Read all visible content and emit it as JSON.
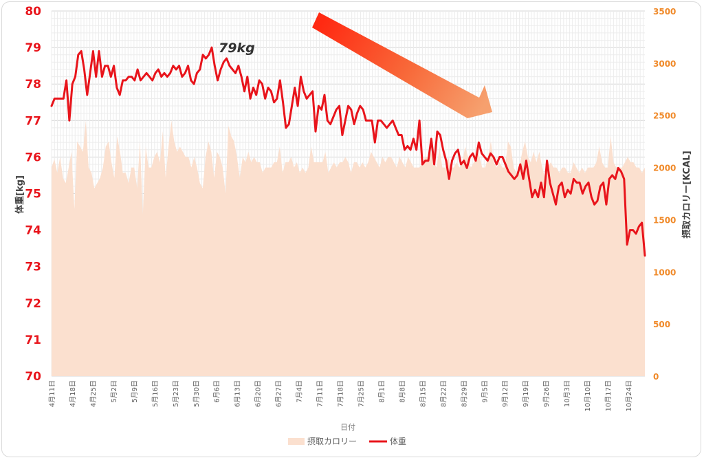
{
  "chart_data": {
    "type": "line",
    "title": "",
    "xlabel": "日付",
    "ylabel_left": "体重[kg]",
    "ylabel_right": "摂取カロリー[KCAL]",
    "y_left_range": [
      70,
      80
    ],
    "y_left_ticks": [
      "70",
      "71",
      "72",
      "73",
      "74",
      "75",
      "76",
      "77",
      "78",
      "79",
      "80"
    ],
    "y_right_range": [
      0,
      3500
    ],
    "y_right_ticks": [
      "0",
      "500",
      "1000",
      "1500",
      "2000",
      "2500",
      "3000",
      "3500"
    ],
    "x_tick_labels": [
      "4月11日",
      "4月18日",
      "4月25日",
      "5月2日",
      "5月9日",
      "5月16日",
      "5月23日",
      "5月30日",
      "6月6日",
      "6月13日",
      "6月20日",
      "6月27日",
      "7月4日",
      "7月11日",
      "7月18日",
      "7月25日",
      "8月1日",
      "8月8日",
      "8月15日",
      "8月22日",
      "8月29日",
      "9月5日",
      "9月12日",
      "9月19日",
      "9月26日",
      "10月3日",
      "10月10日",
      "10月17日",
      "10月24日"
    ],
    "grid": true,
    "legend_position": "bottom",
    "annotation": "79kg",
    "colors": {
      "weight": "#e8141b",
      "calorie": "#fbe0cf",
      "arrow": "#f04a2a",
      "left_axis": "#e8141b",
      "right_axis": "#f08a2a"
    },
    "series": [
      {
        "name": "摂取カロリー",
        "type": "area",
        "axis": "right",
        "values": [
          2000,
          2080,
          1950,
          2100,
          1900,
          1850,
          2000,
          2150,
          1600,
          2250,
          2200,
          2150,
          2450,
          2000,
          1950,
          1800,
          1850,
          1900,
          2000,
          2200,
          2250,
          2050,
          1900,
          2300,
          2150,
          1950,
          1950,
          1850,
          2000,
          2000,
          1800,
          2250,
          1550,
          2200,
          2000,
          2000,
          2100,
          2150,
          2050,
          2350,
          1900,
          2200,
          2450,
          2250,
          2150,
          2200,
          2150,
          2100,
          2100,
          2000,
          2100,
          2000,
          1850,
          1800,
          2100,
          2250,
          2150,
          1900,
          2150,
          2100,
          2000,
          1750,
          2400,
          2300,
          2250,
          2100,
          1900,
          2100,
          2050,
          2150,
          2050,
          2100,
          2050,
          2050,
          1950,
          2000,
          2000,
          2000,
          2050,
          2050,
          2200,
          1950,
          2050,
          2050,
          2100,
          2000,
          2050,
          1950,
          2000,
          1950,
          2000,
          2200,
          2050,
          2050,
          2050,
          2050,
          2150,
          1950,
          2000,
          2050,
          2000,
          2050,
          2050,
          2100,
          2050,
          1950,
          2050,
          2050,
          2000,
          2050,
          2000,
          2050,
          2150,
          2100,
          2050,
          2000,
          2100,
          2050,
          2100,
          2100,
          2050,
          2000,
          2100,
          2050,
          2000,
          2100,
          2050,
          2000,
          2000,
          2000,
          2050,
          2100,
          2100,
          2150,
          2050,
          2000,
          2200,
          2000,
          2000,
          2100,
          2000,
          2000,
          2050,
          2000,
          2050,
          2200,
          2100,
          2000,
          2050,
          2200,
          2100,
          2000,
          2000,
          2100,
          2250,
          2050,
          2000,
          2050,
          2000,
          2000,
          2250,
          2200,
          2000,
          1950,
          2000,
          2150,
          2250,
          2100,
          2050,
          2150,
          2050,
          2150,
          2000,
          1900,
          2000,
          2050,
          2000,
          2000,
          1950,
          2000,
          2000,
          1950,
          1950,
          2050,
          2000,
          1950,
          2000,
          1950,
          2000,
          2000,
          2000,
          2050,
          2200,
          2050,
          2000,
          2000,
          2300,
          2050,
          2000,
          2000,
          2000,
          2050,
          2100,
          2050,
          2050,
          2000,
          2000,
          1950,
          2000
        ]
      },
      {
        "name": "体重",
        "type": "line",
        "axis": "left",
        "values": [
          77.4,
          77.6,
          77.6,
          77.6,
          77.6,
          78.1,
          77.0,
          78.0,
          78.2,
          78.8,
          78.9,
          78.4,
          77.7,
          78.3,
          78.9,
          78.2,
          78.9,
          78.2,
          78.5,
          78.5,
          78.2,
          78.5,
          77.9,
          77.7,
          78.1,
          78.1,
          78.2,
          78.2,
          78.1,
          78.4,
          78.1,
          78.2,
          78.3,
          78.2,
          78.1,
          78.3,
          78.4,
          78.2,
          78.3,
          78.2,
          78.3,
          78.5,
          78.4,
          78.5,
          78.2,
          78.3,
          78.5,
          78.1,
          78.0,
          78.3,
          78.4,
          78.8,
          78.7,
          78.8,
          79.0,
          78.5,
          78.1,
          78.4,
          78.6,
          78.7,
          78.5,
          78.4,
          78.3,
          78.5,
          78.2,
          77.8,
          78.2,
          77.6,
          77.9,
          77.7,
          78.1,
          78.0,
          77.6,
          77.9,
          77.8,
          77.5,
          77.6,
          78.1,
          77.5,
          76.8,
          76.9,
          77.4,
          77.9,
          77.4,
          78.2,
          77.8,
          77.6,
          77.7,
          77.8,
          76.7,
          77.4,
          77.3,
          77.7,
          77.0,
          76.9,
          77.1,
          77.3,
          77.4,
          76.6,
          77.0,
          77.4,
          77.3,
          76.9,
          77.2,
          77.4,
          77.3,
          77.0,
          77.0,
          77.0,
          76.4,
          77.0,
          77.0,
          76.9,
          76.8,
          76.9,
          77.0,
          76.8,
          76.6,
          76.6,
          76.2,
          76.3,
          76.2,
          76.5,
          76.2,
          77.0,
          75.8,
          75.9,
          75.9,
          76.5,
          75.8,
          76.7,
          76.6,
          76.2,
          75.9,
          75.4,
          75.9,
          76.1,
          76.2,
          75.8,
          75.9,
          75.7,
          76.0,
          76.1,
          75.9,
          76.4,
          76.1,
          76.0,
          75.9,
          76.1,
          76.0,
          75.8,
          76.0,
          76.0,
          75.8,
          75.6,
          75.5,
          75.4,
          75.5,
          75.8,
          75.4,
          75.9,
          75.4,
          74.9,
          75.1,
          74.9,
          75.3,
          74.9,
          75.9,
          75.3,
          75.0,
          74.7,
          75.2,
          75.3,
          74.9,
          75.1,
          75.0,
          75.4,
          75.3,
          75.3,
          75.0,
          75.2,
          75.3,
          74.9,
          74.7,
          74.8,
          75.2,
          75.3,
          74.7,
          75.4,
          75.5,
          75.4,
          75.7,
          75.6,
          75.4,
          73.6,
          74.0,
          74.0,
          73.9,
          74.1,
          74.2,
          73.3
        ]
      }
    ]
  }
}
